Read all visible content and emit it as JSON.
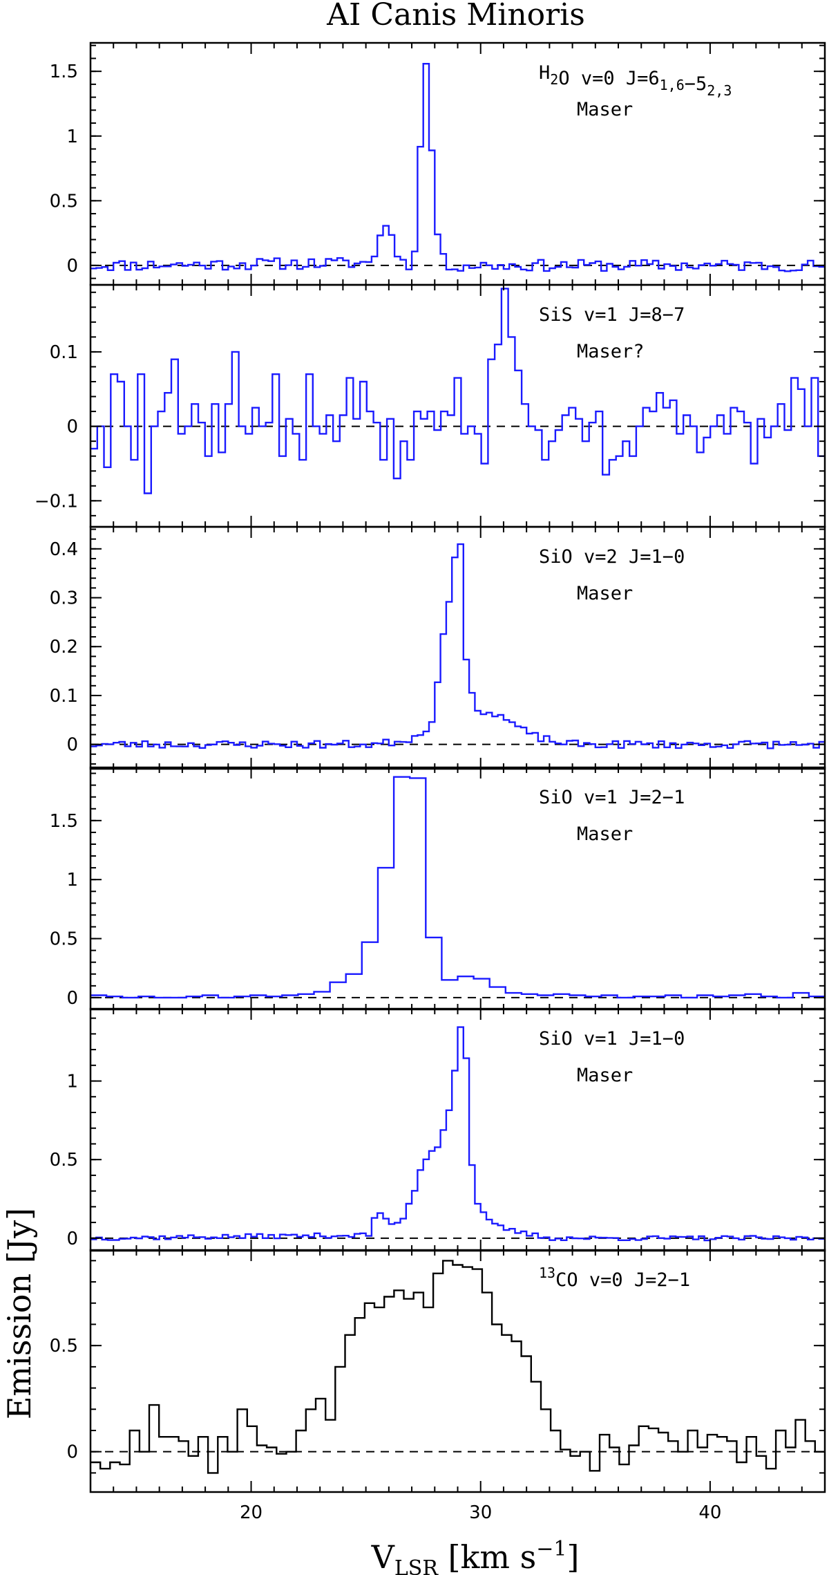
{
  "chart_data": {
    "type": "line",
    "title": "AI Canis Minoris",
    "xlabel": "V_LSR [km s^-1]",
    "xlabel_parts": {
      "main": "V",
      "sub": "LSR",
      "unit": " [km s",
      "sup": "−1",
      "close": "]"
    },
    "ylabel": "Emission [Jy]",
    "xlim": [
      13,
      45
    ],
    "xticks": [
      20,
      30,
      40
    ],
    "step_plot": true,
    "panels": [
      {
        "label": "H2O v=0 J=6_1,6-5_2,3",
        "label_note": "Maser",
        "color": "#1a1aff",
        "ylim": [
          -0.15,
          1.72
        ],
        "yticks": [
          0,
          0.5,
          1,
          1.5
        ],
        "ytick_labels": [
          "0",
          "0.5",
          "1",
          "1.5"
        ],
        "dv": 0.25,
        "profile": [
          [
            13,
            0
          ],
          [
            25.3,
            0.02
          ],
          [
            25.6,
            0.25
          ],
          [
            25.9,
            0.3
          ],
          [
            26.2,
            0.22
          ],
          [
            26.5,
            0.03
          ],
          [
            26.9,
            0.0
          ],
          [
            27.2,
            0.2
          ],
          [
            27.45,
            1.2
          ],
          [
            27.65,
            1.62
          ],
          [
            27.9,
            0.8
          ],
          [
            28.2,
            0.08
          ],
          [
            28.6,
            0.0
          ],
          [
            45,
            0
          ]
        ],
        "noise": 0.045,
        "seed": 11
      },
      {
        "label": "SiS v=1 J=8-7",
        "label_note": "Maser?",
        "color": "#1a1aff",
        "ylim": [
          -0.135,
          0.19
        ],
        "yticks": [
          -0.1,
          0,
          0.1
        ],
        "ytick_labels": [
          "−0.1",
          "0",
          "0.1"
        ],
        "dv": 0.5,
        "values": [
          -0.03,
          0.0,
          -0.055,
          0.07,
          0.06,
          0.0,
          -0.045,
          0.07,
          -0.09,
          0.0,
          0.02,
          0.045,
          0.09,
          -0.01,
          0.0,
          0.03,
          0.005,
          -0.04,
          0.03,
          -0.035,
          0.03,
          0.1,
          0.0,
          -0.01,
          0.025,
          0.0,
          0.005,
          0.07,
          -0.04,
          0.01,
          -0.01,
          -0.045,
          0.07,
          0.0,
          -0.01,
          0.015,
          -0.02,
          0.015,
          0.065,
          0.01,
          0.06,
          0.02,
          0.005,
          -0.045,
          0.01,
          -0.07,
          -0.02,
          -0.045,
          0.02,
          0.01,
          0.02,
          -0.005,
          0.02,
          0.015,
          0.065,
          -0.01,
          0.0,
          -0.01,
          -0.05,
          0.09,
          0.11,
          0.185,
          0.12,
          0.075,
          0.03,
          0.0,
          -0.005,
          -0.045,
          -0.02,
          -0.005,
          0.015,
          0.025,
          0.01,
          -0.02,
          0.005,
          0.02,
          -0.065,
          -0.045,
          -0.04,
          -0.02,
          -0.04,
          0.0,
          0.025,
          0.02,
          0.045,
          0.025,
          0.035,
          -0.01,
          0.015,
          0.0,
          -0.035,
          -0.015,
          0.0,
          0.015,
          -0.01,
          0.025,
          0.02,
          0.005,
          -0.05,
          0.01,
          -0.015,
          0.0,
          0.03,
          -0.005,
          0.065,
          0.05,
          0.0,
          0.065,
          -0.04
        ]
      },
      {
        "label": "SiO v=2 J=1-0",
        "label_note": "Maser",
        "color": "#1a1aff",
        "ylim": [
          -0.05,
          0.445
        ],
        "yticks": [
          0,
          0.1,
          0.2,
          0.3,
          0.4
        ],
        "ytick_labels": [
          "0",
          "0.1",
          "0.2",
          "0.3",
          "0.4"
        ],
        "dv": 0.25,
        "profile": [
          [
            13,
            0.0
          ],
          [
            25.5,
            0.0
          ],
          [
            26.8,
            0.01
          ],
          [
            27.4,
            0.02
          ],
          [
            27.9,
            0.05
          ],
          [
            28.3,
            0.2
          ],
          [
            28.7,
            0.32
          ],
          [
            28.95,
            0.42
          ],
          [
            29.15,
            0.4
          ],
          [
            29.4,
            0.15
          ],
          [
            29.7,
            0.08
          ],
          [
            30.3,
            0.065
          ],
          [
            31.0,
            0.055
          ],
          [
            31.5,
            0.04
          ],
          [
            32.1,
            0.02
          ],
          [
            33.0,
            0.008
          ],
          [
            34.0,
            0.0
          ],
          [
            45,
            0.0
          ]
        ],
        "noise": 0.008,
        "seed": 23
      },
      {
        "label": "SiO v=1 J=2-1",
        "label_note": "Maser",
        "color": "#1a1aff",
        "ylim": [
          -0.1,
          1.95
        ],
        "yticks": [
          0,
          0.5,
          1,
          1.5
        ],
        "ytick_labels": [
          "0",
          "0.5",
          "1",
          "1.5"
        ],
        "dv": 0.7,
        "values": [
          0.02,
          0.01,
          0.0,
          0.01,
          0.0,
          0.0,
          0.01,
          0.02,
          0.0,
          0.01,
          0.02,
          0.01,
          0.02,
          0.03,
          0.05,
          0.13,
          0.2,
          0.47,
          1.1,
          1.87,
          1.86,
          0.51,
          0.15,
          0.18,
          0.16,
          0.09,
          0.04,
          0.03,
          0.02,
          0.03,
          0.02,
          0.01,
          0.02,
          0.0,
          0.01,
          0.01,
          0.02,
          0.0,
          0.02,
          0.01,
          0.02,
          0.03,
          0.01,
          0.0,
          0.04,
          0.01
        ]
      },
      {
        "label": "SiO v=1 J=1-0",
        "label_note": "Maser",
        "color": "#1a1aff",
        "ylim": [
          -0.08,
          1.46
        ],
        "yticks": [
          0,
          0.5,
          1
        ],
        "ytick_labels": [
          "0",
          "0.5",
          "1"
        ],
        "dv": 0.25,
        "profile": [
          [
            13,
            0.0
          ],
          [
            25.2,
            0.02
          ],
          [
            25.5,
            0.2
          ],
          [
            25.8,
            0.12
          ],
          [
            26.1,
            0.08
          ],
          [
            26.6,
            0.12
          ],
          [
            27.0,
            0.25
          ],
          [
            27.4,
            0.45
          ],
          [
            27.8,
            0.55
          ],
          [
            28.2,
            0.6
          ],
          [
            28.6,
            0.8
          ],
          [
            29.0,
            1.2
          ],
          [
            29.2,
            1.43
          ],
          [
            29.4,
            1.1
          ],
          [
            29.6,
            0.5
          ],
          [
            29.9,
            0.2
          ],
          [
            30.4,
            0.1
          ],
          [
            31.0,
            0.06
          ],
          [
            31.6,
            0.04
          ],
          [
            32.3,
            0.02
          ],
          [
            33.0,
            0.0
          ],
          [
            45,
            0.0
          ]
        ],
        "noise": 0.015,
        "seed": 37
      },
      {
        "label": "13CO v=0 J=2-1",
        "label_note": "",
        "color": "#000000",
        "ylim": [
          -0.19,
          0.95
        ],
        "yticks": [
          0,
          0.5
        ],
        "ytick_labels": [
          "0",
          "0.5"
        ],
        "dv": 0.5,
        "values": [
          -0.05,
          -0.08,
          -0.05,
          -0.06,
          0.1,
          0.0,
          0.22,
          0.07,
          0.07,
          0.05,
          -0.02,
          0.07,
          -0.1,
          0.07,
          0.0,
          0.2,
          0.12,
          0.03,
          0.02,
          -0.01,
          0.0,
          0.1,
          0.2,
          0.25,
          0.15,
          0.4,
          0.55,
          0.63,
          0.7,
          0.68,
          0.73,
          0.76,
          0.72,
          0.75,
          0.68,
          0.84,
          0.9,
          0.88,
          0.87,
          0.86,
          0.75,
          0.6,
          0.55,
          0.52,
          0.45,
          0.33,
          0.2,
          0.1,
          0.01,
          -0.02,
          0.0,
          -0.09,
          0.08,
          0.02,
          -0.06,
          0.03,
          0.12,
          0.11,
          0.09,
          0.05,
          0.0,
          0.1,
          0.02,
          0.08,
          0.07,
          0.05,
          -0.05,
          0.07,
          -0.02,
          -0.08,
          0.1,
          0.02,
          0.15,
          0.05,
          0.0
        ]
      }
    ]
  }
}
